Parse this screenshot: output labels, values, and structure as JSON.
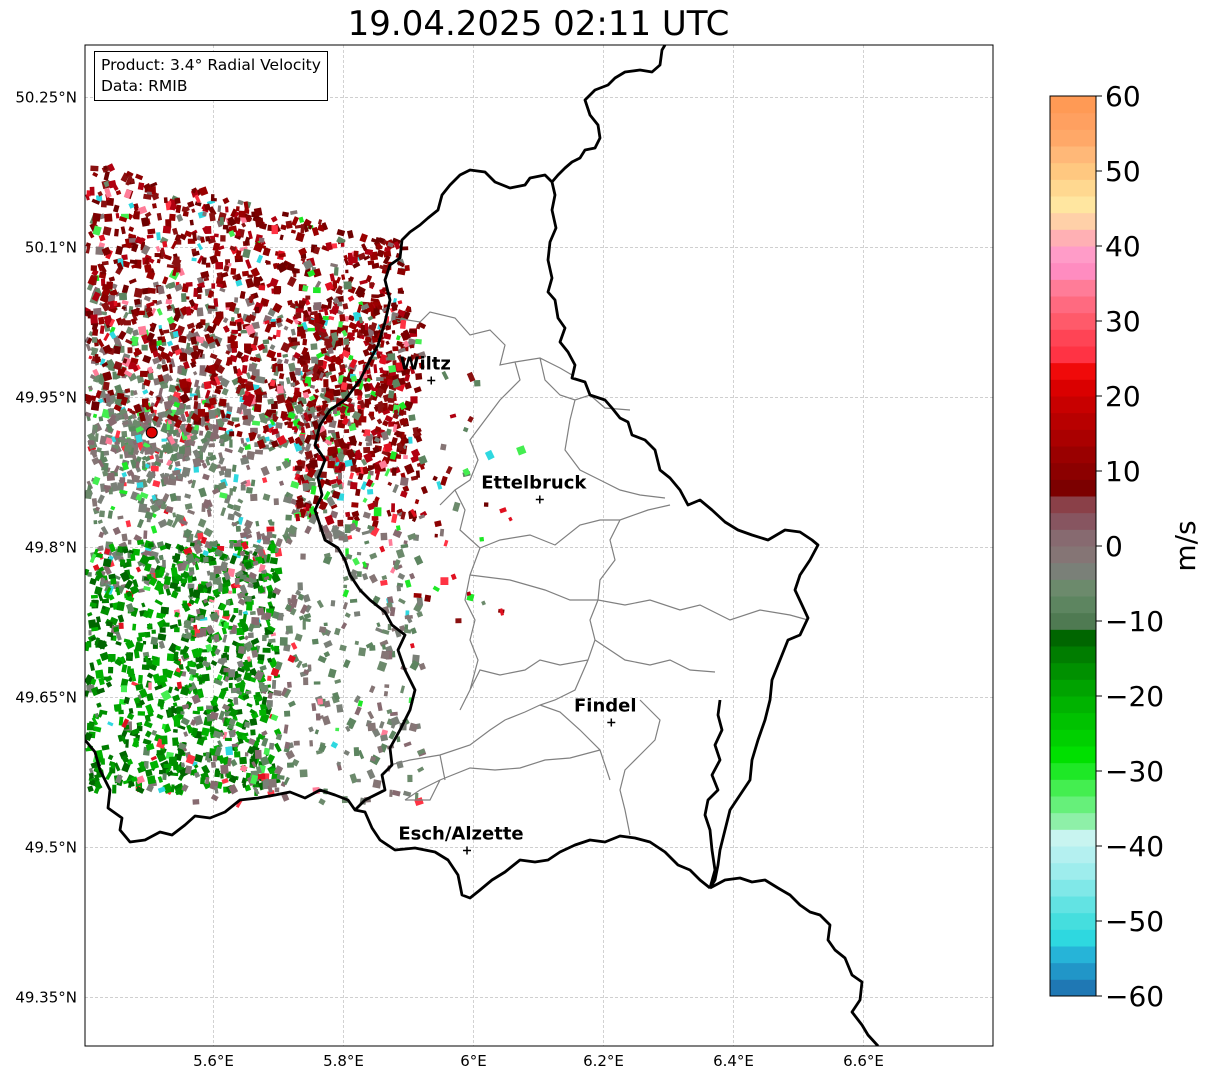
{
  "title": "19.04.2025 02:11 UTC",
  "info_box": {
    "product": "Product: 3.4° Radial Velocity",
    "data": "Data: RMIB"
  },
  "map": {
    "lon_range": [
      5.4,
      6.8
    ],
    "lat_range": [
      49.3,
      50.3
    ],
    "lon_ticks": [
      {
        "value": 5.6,
        "label": "5.6°E"
      },
      {
        "value": 5.8,
        "label": "5.8°E"
      },
      {
        "value": 6.0,
        "label": "6°E"
      },
      {
        "value": 6.2,
        "label": "6.2°E"
      },
      {
        "value": 6.4,
        "label": "6.4°E"
      },
      {
        "value": 6.6,
        "label": "6.6°E"
      }
    ],
    "lat_ticks": [
      {
        "value": 50.25,
        "label": "50.25°N"
      },
      {
        "value": 50.1,
        "label": "50.1°N"
      },
      {
        "value": 49.95,
        "label": "49.95°N"
      },
      {
        "value": 49.8,
        "label": "49.8°N"
      },
      {
        "value": 49.65,
        "label": "49.65°N"
      },
      {
        "value": 49.5,
        "label": "49.5°N"
      },
      {
        "value": 49.35,
        "label": "49.35°N"
      }
    ],
    "gridlines": true,
    "radar_site": {
      "lon": 5.505,
      "lat": 49.915,
      "color": "#e00000"
    },
    "cities": [
      {
        "name": "Wiltz",
        "lon": 5.935,
        "lat": 49.967
      },
      {
        "name": "Ettelbruck",
        "lon": 6.102,
        "lat": 49.848
      },
      {
        "name": "Findel",
        "lon": 6.212,
        "lat": 49.625
      },
      {
        "name": "Esch/Alzette",
        "lon": 5.99,
        "lat": 49.497
      }
    ]
  },
  "colorbar": {
    "label": "m/s",
    "min": -60,
    "max": 60,
    "ticks": [
      {
        "value": 60,
        "label": "60"
      },
      {
        "value": 50,
        "label": "50"
      },
      {
        "value": 40,
        "label": "40"
      },
      {
        "value": 30,
        "label": "30"
      },
      {
        "value": 20,
        "label": "20"
      },
      {
        "value": 10,
        "label": "10"
      },
      {
        "value": 0,
        "label": "0"
      },
      {
        "value": -10,
        "label": "−10"
      },
      {
        "value": -20,
        "label": "−20"
      },
      {
        "value": -30,
        "label": "−30"
      },
      {
        "value": -40,
        "label": "−40"
      },
      {
        "value": -50,
        "label": "−50"
      },
      {
        "value": -60,
        "label": "−60"
      }
    ],
    "colors": [
      "#1f78b4",
      "#2196c8",
      "#26b4d8",
      "#2ed8e0",
      "#45dede",
      "#62e3e3",
      "#80e8e8",
      "#9eeded",
      "#b4f0f0",
      "#c8f4f0",
      "#8ef0a8",
      "#66f07a",
      "#44ee50",
      "#1ee826",
      "#00e000",
      "#00d000",
      "#00c200",
      "#00b300",
      "#00a300",
      "#009000",
      "#007d00",
      "#006600",
      "#4f7a52",
      "#5d8560",
      "#6c8a6c",
      "#7a8078",
      "#857575",
      "#876a70",
      "#875560",
      "#8a4048",
      "#7c0000",
      "#8c0000",
      "#9a0000",
      "#aa0000",
      "#b80000",
      "#c80000",
      "#da0000",
      "#f00a0a",
      "#ff3344",
      "#ff4455",
      "#ff5a6a",
      "#ff6a80",
      "#ff7c98",
      "#ff8cc0",
      "#ff9cc8",
      "#ffb0b4",
      "#ffd0a8",
      "#ffe6a0",
      "#ffd890",
      "#ffc880",
      "#ffb878",
      "#ffa868",
      "#ffa060",
      "#ff9a55"
    ]
  }
}
